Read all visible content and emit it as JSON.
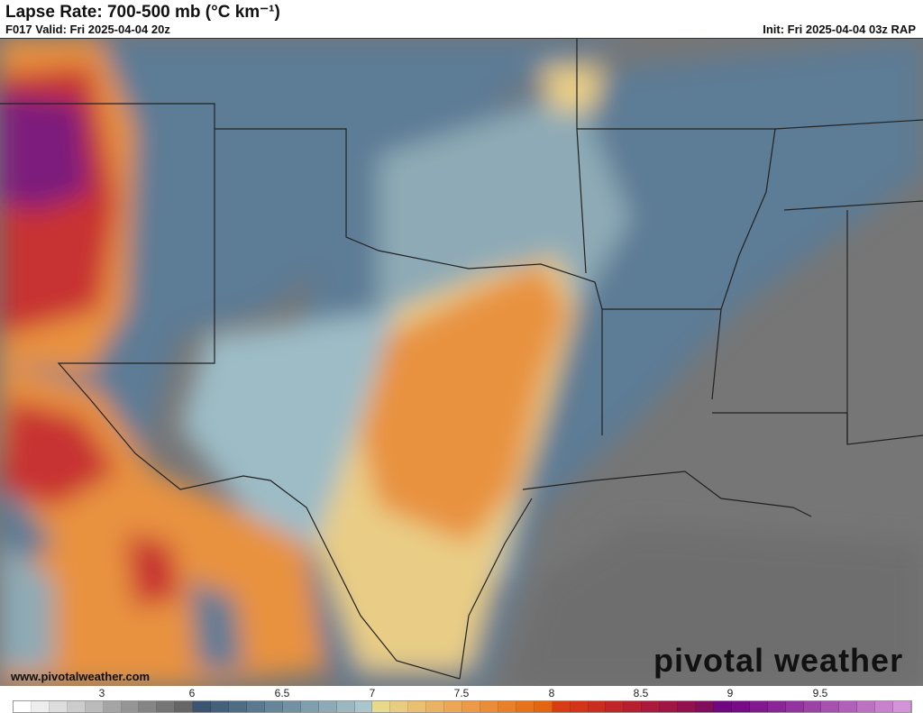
{
  "header": {
    "title": "Lapse Rate: 700-500 mb (°C km⁻¹)",
    "valid": "F017 Valid: Fri 2025-04-04 20z",
    "init": "Init: Fri 2025-04-04 03z RAP"
  },
  "footer": {
    "website": "www.pivotalweather.com",
    "logo": "pivotal weather"
  },
  "colorbar": {
    "ticks": [
      "3",
      "6",
      "6.5",
      "7",
      "7.5",
      "8",
      "8.5",
      "9",
      "9.5"
    ],
    "colors": [
      "#ffffff",
      "#eeeeee",
      "#dddddd",
      "#cccccc",
      "#bbbbbb",
      "#a5a5a5",
      "#959595",
      "#858585",
      "#757575",
      "#666666",
      "#3b5570",
      "#45607a",
      "#4f6c84",
      "#5a788e",
      "#668598",
      "#7391a2",
      "#809ead",
      "#8eaab6",
      "#9cb7c0",
      "#abc5cc",
      "#e8d98c",
      "#e9cc80",
      "#eabf72",
      "#ebb264",
      "#eca656",
      "#ed9a48",
      "#ea8c38",
      "#e88029",
      "#e6731b",
      "#e3650f",
      "#d83c14",
      "#d33419",
      "#ca2c20",
      "#c02528",
      "#b51f30",
      "#aa1a3a",
      "#9f1544",
      "#92104e",
      "#820c5c",
      "#71077f",
      "#780a88",
      "#82188f",
      "#8a2597",
      "#93339f",
      "#9c42a7",
      "#a650af",
      "#b060b9",
      "#bc71c3",
      "#c882cd",
      "#d694d8"
    ]
  },
  "map": {
    "region": "Southern Plains / Texas",
    "colors": {
      "ocean": "#707070",
      "land_low": "#7a7a7a",
      "blue": "#5d7c95",
      "light_blue": "#9dbcc6",
      "yellow": "#e9cd86",
      "orange": "#e8923f",
      "red": "#c73030",
      "purple": "#7d1f7c"
    }
  }
}
